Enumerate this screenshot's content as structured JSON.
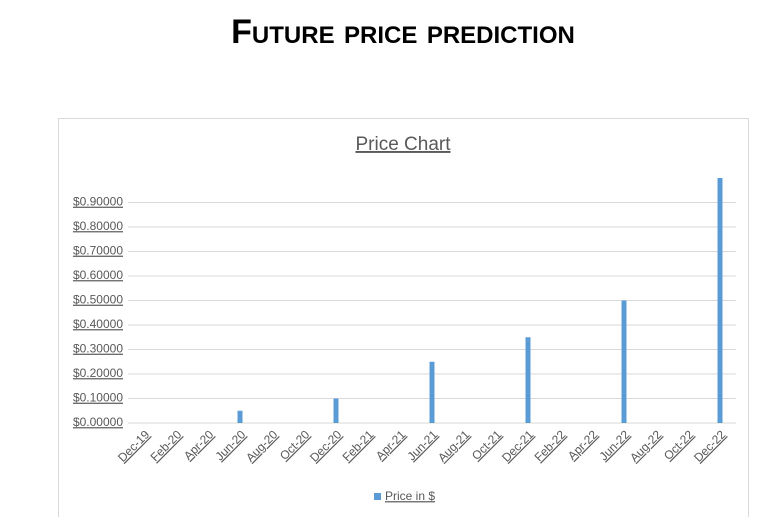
{
  "page_title": "Future price prediction",
  "chart_data": {
    "type": "bar",
    "title": "Price Chart",
    "categories": [
      "Dec-19",
      "Feb-20",
      "Apr-20",
      "Jun-20",
      "Aug-20",
      "Oct-20",
      "Dec-20",
      "Feb-21",
      "Apr-21",
      "Jun-21",
      "Aug-21",
      "Oct-21",
      "Dec-21",
      "Feb-22",
      "Apr-22",
      "Jun-22",
      "Aug-22",
      "Oct-22",
      "Dec-22"
    ],
    "series": [
      {
        "name": "Price in $",
        "color": "#5b9bd5",
        "values": [
          null,
          null,
          null,
          0.05,
          null,
          null,
          0.1,
          null,
          null,
          0.25,
          null,
          null,
          0.35,
          null,
          null,
          0.5,
          null,
          null,
          1.0
        ]
      }
    ],
    "ylim": [
      0,
      1
    ],
    "yticks": [
      {
        "value": 0,
        "label": "$0.00000"
      },
      {
        "value": 0.1,
        "label": "$0.10000"
      },
      {
        "value": 0.2,
        "label": "$0.20000"
      },
      {
        "value": 0.3,
        "label": "$0.30000"
      },
      {
        "value": 0.4,
        "label": "$0.40000"
      },
      {
        "value": 0.5,
        "label": "$0.50000"
      },
      {
        "value": 0.6,
        "label": "$0.60000"
      },
      {
        "value": 0.7,
        "label": "$0.70000"
      },
      {
        "value": 0.8,
        "label": "$0.80000"
      },
      {
        "value": 0.9,
        "label": "$0.90000"
      }
    ],
    "grid": true,
    "legend": "bottom"
  }
}
